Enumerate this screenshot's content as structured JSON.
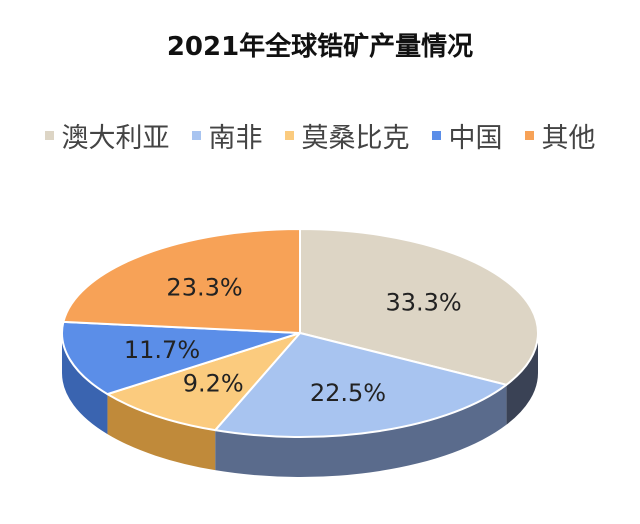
{
  "chart_data": {
    "type": "pie",
    "title": "2021年全球锆矿产量情况",
    "legend_position": "top",
    "three_d": true,
    "slices": [
      {
        "name": "澳大利亚",
        "value": 33.3,
        "label": "33.3%",
        "color": "#DDD5C5",
        "side_color": "#3A4255"
      },
      {
        "name": "南非",
        "value": 22.5,
        "label": "22.5%",
        "color": "#A8C4F0",
        "side_color": "#5A6B8C"
      },
      {
        "name": "莫桑比克",
        "value": 9.2,
        "label": "9.2%",
        "color": "#FBCB7E",
        "side_color": "#C08A3A"
      },
      {
        "name": "中国",
        "value": 11.7,
        "label": "11.7%",
        "color": "#5B8EE8",
        "side_color": "#3A64B0"
      },
      {
        "name": "其他",
        "value": 23.3,
        "label": "23.3%",
        "color": "#F7A257",
        "side_color": "#C0762F"
      }
    ]
  }
}
